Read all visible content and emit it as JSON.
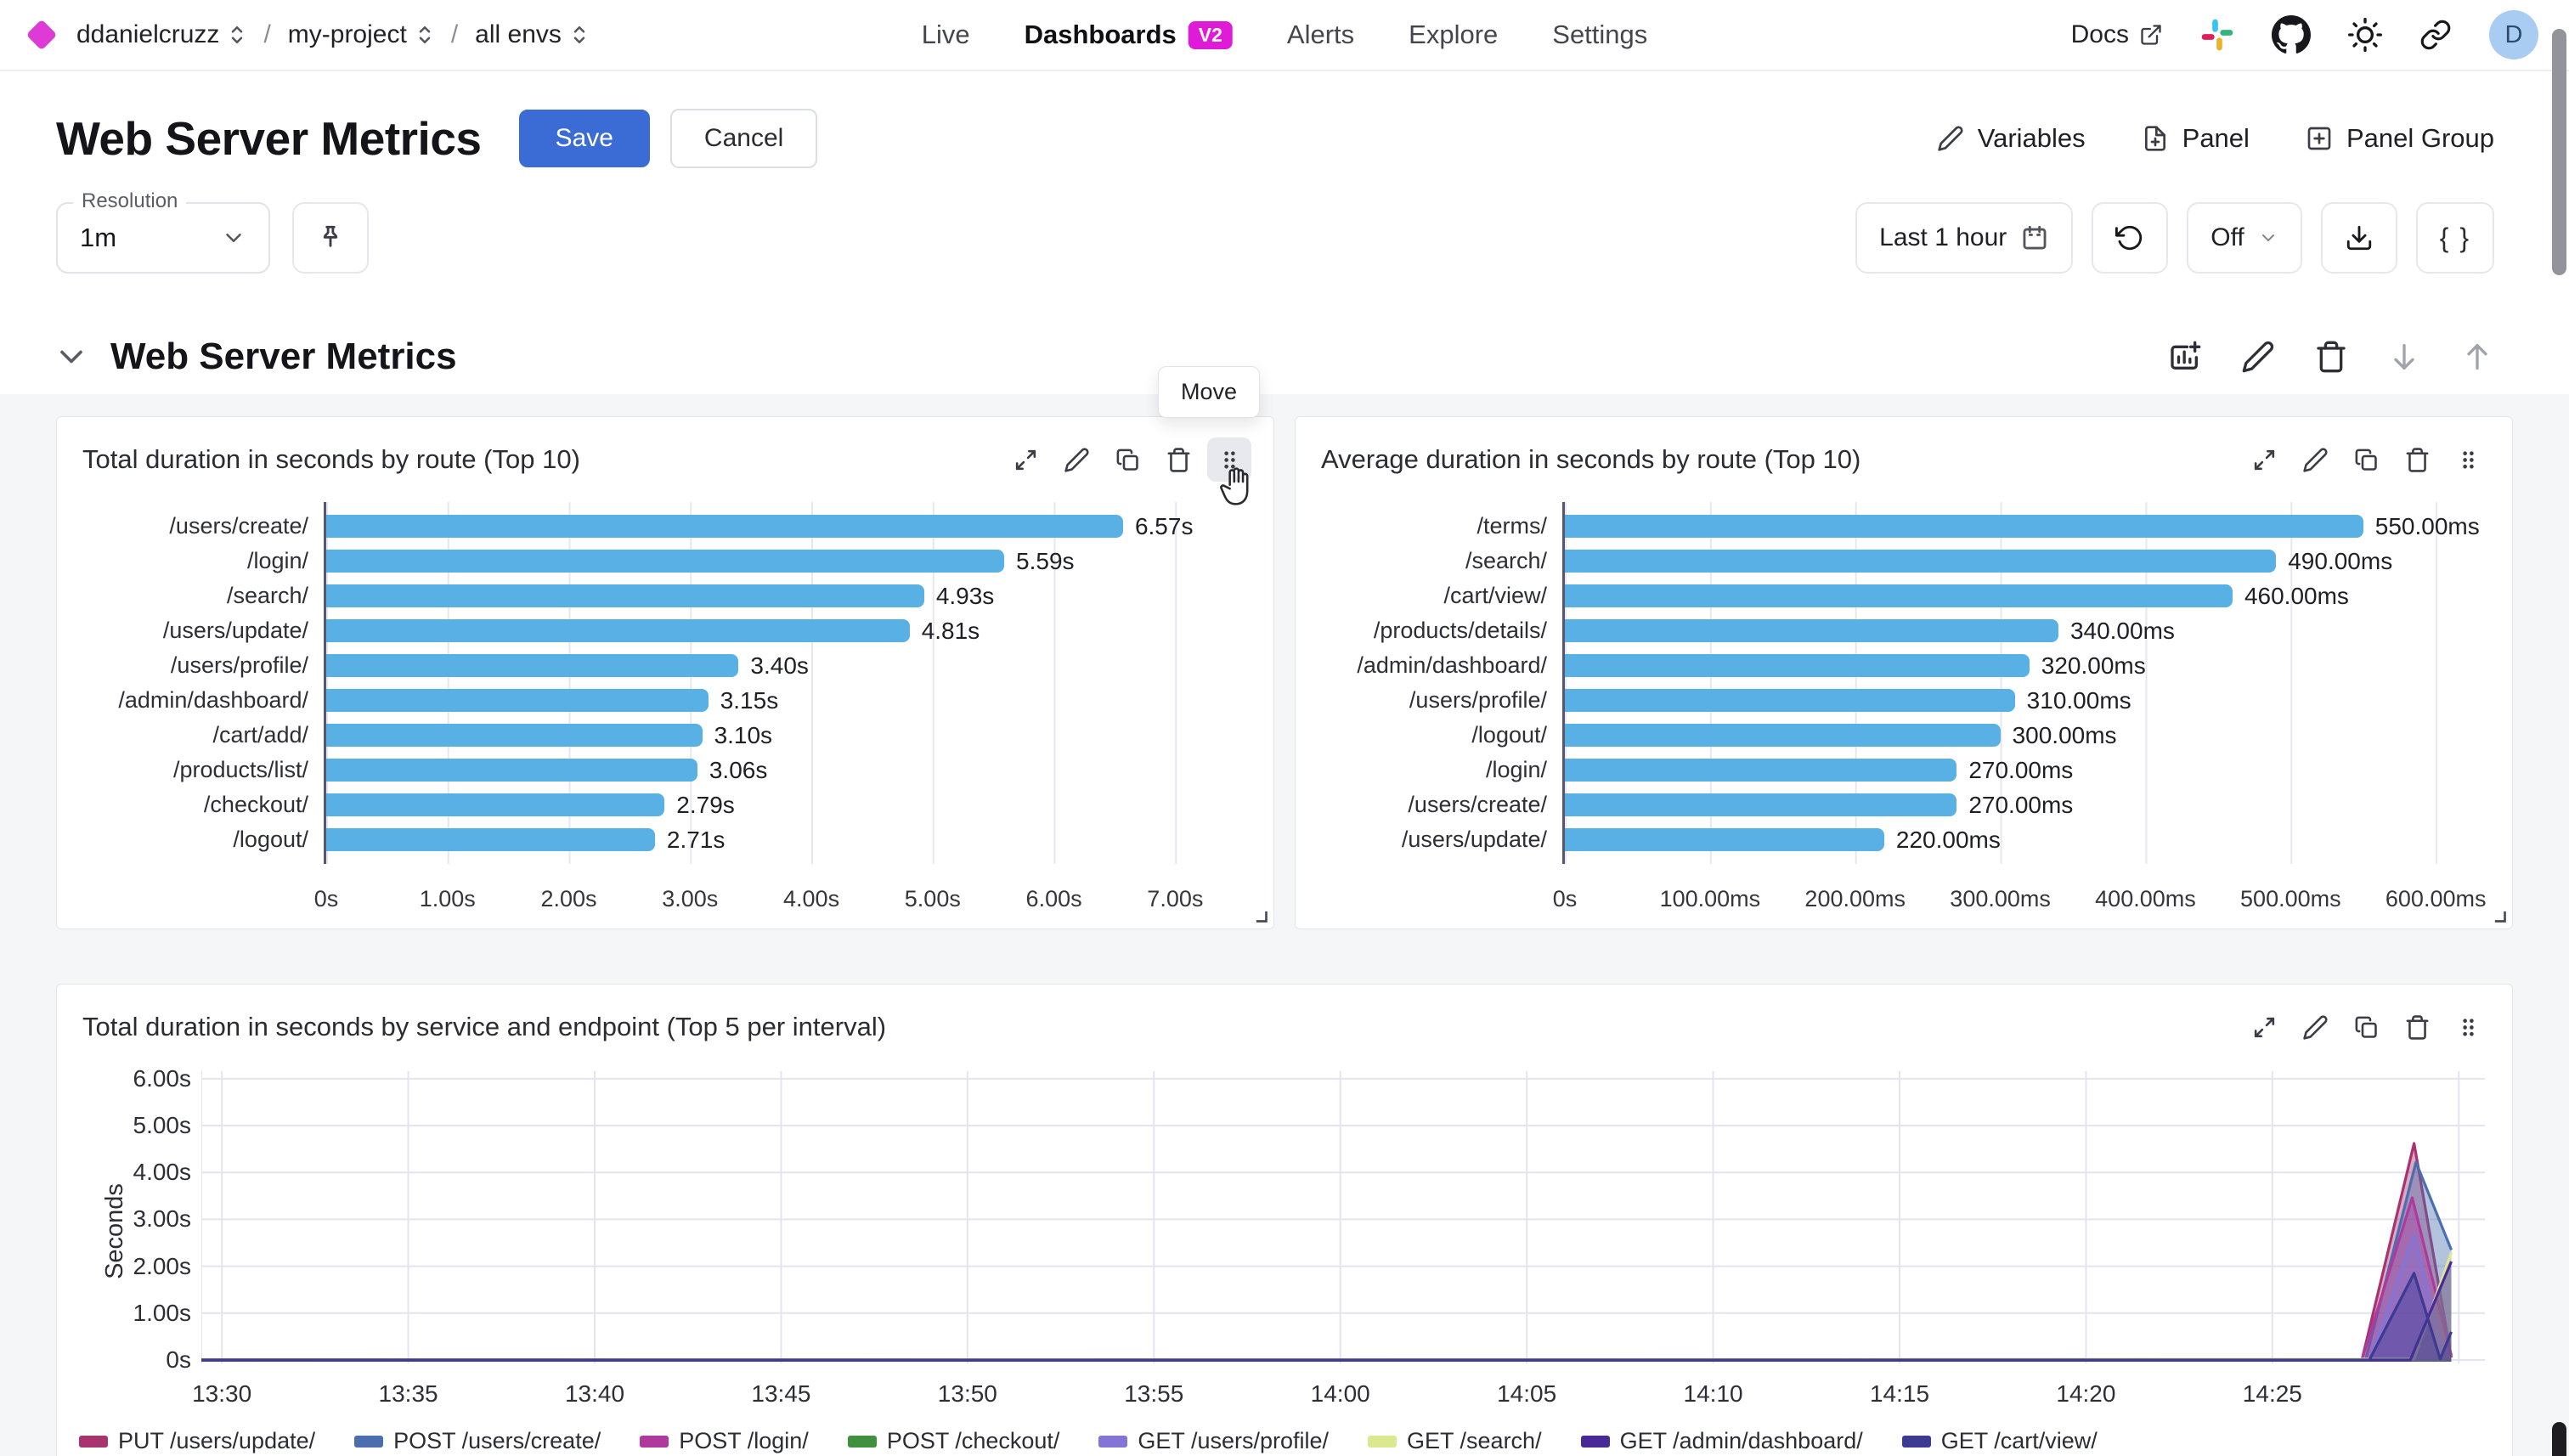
{
  "nav": {
    "breadcrumb": {
      "items": [
        "ddanielcruzz",
        "my-project",
        "all envs"
      ],
      "separator": "/"
    },
    "tabs": [
      {
        "label": "Live",
        "active": false
      },
      {
        "label": "Dashboards",
        "active": true,
        "badge": "V2"
      },
      {
        "label": "Alerts",
        "active": false
      },
      {
        "label": "Explore",
        "active": false
      },
      {
        "label": "Settings",
        "active": false
      }
    ],
    "docs_label": "Docs",
    "right_icons": [
      "slack-icon",
      "github-icon",
      "theme-sun-icon",
      "share-link-icon"
    ],
    "avatar_letter": "D"
  },
  "header": {
    "title": "Web Server Metrics",
    "save_label": "Save",
    "cancel_label": "Cancel",
    "actions": [
      {
        "label": "Variables",
        "icon": "pencil-icon"
      },
      {
        "label": "Panel",
        "icon": "file-plus-icon"
      },
      {
        "label": "Panel Group",
        "icon": "square-plus-icon"
      }
    ]
  },
  "controls": {
    "resolution_label": "Resolution",
    "resolution_value": "1m",
    "time_range": "Last 1 hour",
    "refresh_interval": "Off",
    "braces": "{ }"
  },
  "section": {
    "title": "Web Server Metrics",
    "move_tooltip": "Move",
    "toolbar_icons": [
      {
        "icon": "add-panel-icon",
        "dim": false
      },
      {
        "icon": "pencil-icon",
        "dim": false
      },
      {
        "icon": "trash-icon",
        "dim": false
      },
      {
        "icon": "arrow-down-icon",
        "dim": true
      },
      {
        "icon": "arrow-up-icon",
        "dim": true
      }
    ]
  },
  "panel_toolbar_icons": [
    "expand-icon",
    "pencil-icon",
    "copy-icon",
    "trash-icon",
    "drag-handle-icon"
  ],
  "colors": {
    "accent_blue": "#3b6bd4",
    "logo_magenta": "#de3ad6",
    "badge_magenta": "#e01bd8",
    "bar_blue": "#58b0e4",
    "avatar_bg": "#a9cdf2"
  },
  "chart_data": [
    {
      "type": "bar",
      "orientation": "horizontal",
      "title": "Total duration in seconds by route (Top 10)",
      "categories": [
        "/users/create/",
        "/login/",
        "/search/",
        "/users/update/",
        "/users/profile/",
        "/admin/dashboard/",
        "/cart/add/",
        "/products/list/",
        "/checkout/",
        "/logout/"
      ],
      "values": [
        6.57,
        5.59,
        4.93,
        4.81,
        3.4,
        3.15,
        3.1,
        3.06,
        2.79,
        2.71
      ],
      "value_labels": [
        "6.57s",
        "5.59s",
        "4.93s",
        "4.81s",
        "3.40s",
        "3.15s",
        "3.10s",
        "3.06s",
        "2.79s",
        "2.71s"
      ],
      "x_ticks": [
        {
          "value": 0,
          "label": "0s"
        },
        {
          "value": 1,
          "label": "1.00s"
        },
        {
          "value": 2,
          "label": "2.00s"
        },
        {
          "value": 3,
          "label": "3.00s"
        },
        {
          "value": 4,
          "label": "4.00s"
        },
        {
          "value": 5,
          "label": "5.00s"
        },
        {
          "value": 6,
          "label": "6.00s"
        },
        {
          "value": 7,
          "label": "7.00s"
        }
      ],
      "xlim": [
        0,
        7.6
      ],
      "unit": "s",
      "bar_color": "#58b0e4"
    },
    {
      "type": "bar",
      "orientation": "horizontal",
      "title": "Average duration in seconds by route (Top 10)",
      "categories": [
        "/terms/",
        "/search/",
        "/cart/view/",
        "/products/details/",
        "/admin/dashboard/",
        "/users/profile/",
        "/logout/",
        "/login/",
        "/users/create/",
        "/users/update/"
      ],
      "values": [
        550,
        490,
        460,
        340,
        320,
        310,
        300,
        270,
        270,
        220
      ],
      "value_labels": [
        "550.00ms",
        "490.00ms",
        "460.00ms",
        "340.00ms",
        "320.00ms",
        "310.00ms",
        "300.00ms",
        "270.00ms",
        "270.00ms",
        "220.00ms"
      ],
      "x_ticks": [
        {
          "value": 0,
          "label": "0s"
        },
        {
          "value": 100,
          "label": "100.00ms"
        },
        {
          "value": 200,
          "label": "200.00ms"
        },
        {
          "value": 300,
          "label": "300.00ms"
        },
        {
          "value": 400,
          "label": "400.00ms"
        },
        {
          "value": 500,
          "label": "500.00ms"
        },
        {
          "value": 600,
          "label": "600.00ms"
        }
      ],
      "xlim": [
        0,
        635
      ],
      "unit": "ms",
      "bar_color": "#58b0e4"
    },
    {
      "type": "area",
      "title": "Total duration in seconds by service and endpoint (Top 5 per interval)",
      "ylabel": "Seconds",
      "y_ticks": [
        {
          "value": 0,
          "label": "0s"
        },
        {
          "value": 1,
          "label": "1.00s"
        },
        {
          "value": 2,
          "label": "2.00s"
        },
        {
          "value": 3,
          "label": "3.00s"
        },
        {
          "value": 4,
          "label": "4.00s"
        },
        {
          "value": 5,
          "label": "5.00s"
        },
        {
          "value": 6,
          "label": "6.00s"
        }
      ],
      "ylim": [
        0,
        6.16
      ],
      "x_domain_minutes": [
        -0.55,
        60.7
      ],
      "x_base_time": "13:30",
      "x_ticks": [
        {
          "minute": 0,
          "label": "13:30"
        },
        {
          "minute": 5,
          "label": "13:35"
        },
        {
          "minute": 10,
          "label": "13:40"
        },
        {
          "minute": 15,
          "label": "13:45"
        },
        {
          "minute": 20,
          "label": "13:50"
        },
        {
          "minute": 25,
          "label": "13:55"
        },
        {
          "minute": 30,
          "label": "14:00"
        },
        {
          "minute": 35,
          "label": "14:05"
        },
        {
          "minute": 40,
          "label": "14:10"
        },
        {
          "minute": 45,
          "label": "14:15"
        },
        {
          "minute": 50,
          "label": "14:20"
        },
        {
          "minute": 55,
          "label": "14:25"
        }
      ],
      "extra_gridline_minutes": [
        60
      ],
      "series": [
        {
          "name": "PUT /users/update/",
          "color": "#a8336f",
          "points": [
            [
              -0.55,
              0
            ],
            [
              57.4,
              0
            ],
            [
              58.8,
              4.62
            ],
            [
              59.8,
              0.05
            ]
          ]
        },
        {
          "name": "POST /users/create/",
          "color": "#4b6fae",
          "points": [
            [
              -0.55,
              0
            ],
            [
              57.5,
              0
            ],
            [
              58.85,
              4.22
            ],
            [
              59.8,
              2.35
            ]
          ]
        },
        {
          "name": "POST /login/",
          "color": "#af3a9d",
          "points": [
            [
              -0.55,
              0
            ],
            [
              57.4,
              0
            ],
            [
              58.75,
              3.46
            ],
            [
              59.8,
              0.1
            ]
          ]
        },
        {
          "name": "POST /checkout/",
          "color": "#3f9140",
          "points": [
            [
              -0.55,
              0
            ],
            [
              59.8,
              0
            ]
          ]
        },
        {
          "name": "GET /users/profile/",
          "color": "#8374d6",
          "points": [
            [
              -0.55,
              0
            ],
            [
              57.6,
              0
            ],
            [
              58.8,
              2.68
            ],
            [
              59.6,
              0.05
            ]
          ]
        },
        {
          "name": "GET /search/",
          "color": "#dce88f",
          "points": [
            [
              -0.55,
              0
            ],
            [
              58.8,
              0.02
            ],
            [
              59.8,
              2.3
            ]
          ]
        },
        {
          "name": "GET /admin/dashboard/",
          "color": "#482a96",
          "points": [
            [
              -0.55,
              0
            ],
            [
              58.7,
              0
            ],
            [
              59.8,
              2.1
            ]
          ]
        },
        {
          "name": "GET /cart/view/",
          "color": "#3c3a92",
          "points": [
            [
              -0.55,
              0
            ],
            [
              57.6,
              0
            ],
            [
              58.8,
              1.85
            ],
            [
              59.5,
              0.02
            ],
            [
              59.8,
              0.6
            ]
          ]
        }
      ]
    }
  ]
}
